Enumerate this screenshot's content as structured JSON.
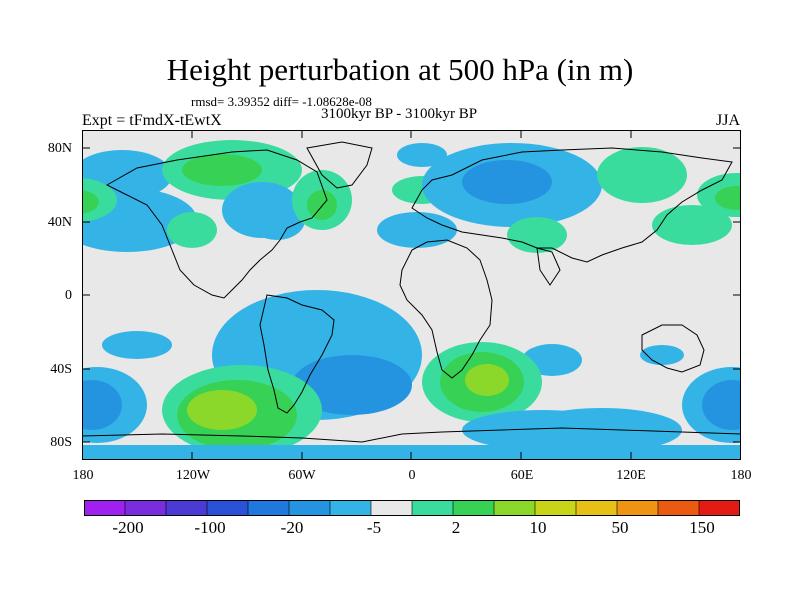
{
  "figure": {
    "title": "Height perturbation at 500 hPa (in m)",
    "stats": "rmsd= 3.39352 diff= -1.08628e-08",
    "period": "3100kyr BP - 3100kyr BP",
    "experiment": "Expt = tFmdX-tEwtX",
    "season": "JJA"
  },
  "axes": {
    "lat_ticks": [
      "80N",
      "40N",
      "0",
      "40S",
      "80S"
    ],
    "lon_ticks": [
      "180",
      "120W",
      "60W",
      "0",
      "60E",
      "120E",
      "180"
    ]
  },
  "colorbar": {
    "colors": [
      "#a020f0",
      "#7b2cdc",
      "#4b3ad4",
      "#2a52d8",
      "#1f78dc",
      "#2594e0",
      "#34b4e6",
      "#e8e8e8",
      "#3adc9e",
      "#37d255",
      "#8cd82a",
      "#c8d418",
      "#e6c016",
      "#ee9412",
      "#ea5a10",
      "#e41a14"
    ],
    "labels": [
      "-200",
      "-100",
      "-20",
      "-5",
      "2",
      "10",
      "50",
      "150"
    ]
  },
  "chart_data": {
    "type": "heatmap",
    "title": "Height perturbation at 500 hPa (in m)",
    "lon_range": [
      -180,
      180
    ],
    "lat_range": [
      -90,
      90
    ],
    "levels": [
      -300,
      -200,
      -150,
      -100,
      -50,
      -20,
      -10,
      -5,
      -2,
      2,
      5,
      10,
      20,
      50,
      100,
      150,
      200
    ],
    "anomalies": [
      {
        "region": "North Pacific / Alaska",
        "lon": -160,
        "lat": 50,
        "sign": "negative",
        "category": "-5"
      },
      {
        "region": "North-west Pacific",
        "lon": 170,
        "lat": 55,
        "sign": "positive",
        "category": "5"
      },
      {
        "region": "Canadian Arctic",
        "lon": -105,
        "lat": 72,
        "sign": "positive",
        "category": "5"
      },
      {
        "region": "Eastern North America",
        "lon": -75,
        "lat": 55,
        "sign": "negative",
        "category": "-5"
      },
      {
        "region": "North Atlantic",
        "lon": -45,
        "lat": 45,
        "sign": "positive",
        "category": "5"
      },
      {
        "region": "Siberia",
        "lon": 60,
        "lat": 57,
        "sign": "negative",
        "category": "-10"
      },
      {
        "region": "Tibet / East Asia",
        "lon": 110,
        "lat": 55,
        "sign": "positive",
        "category": "5"
      },
      {
        "region": "South Pacific",
        "lon": -105,
        "lat": -62,
        "sign": "positive",
        "category": "10"
      },
      {
        "region": "South Atlantic",
        "lon": -30,
        "lat": -55,
        "sign": "negative",
        "category": "-10"
      },
      {
        "region": "South Indian Ocean",
        "lon": 40,
        "lat": -50,
        "sign": "positive",
        "category": "10"
      },
      {
        "region": "Southern Ocean off Australia",
        "lon": 95,
        "lat": -55,
        "sign": "negative",
        "category": "-5"
      },
      {
        "region": "South-west Pacific",
        "lon": 175,
        "lat": -62,
        "sign": "negative",
        "category": "-10"
      },
      {
        "region": "Equatorial South Atlantic",
        "lon": -15,
        "lat": -20,
        "sign": "negative",
        "category": "-5"
      }
    ]
  }
}
